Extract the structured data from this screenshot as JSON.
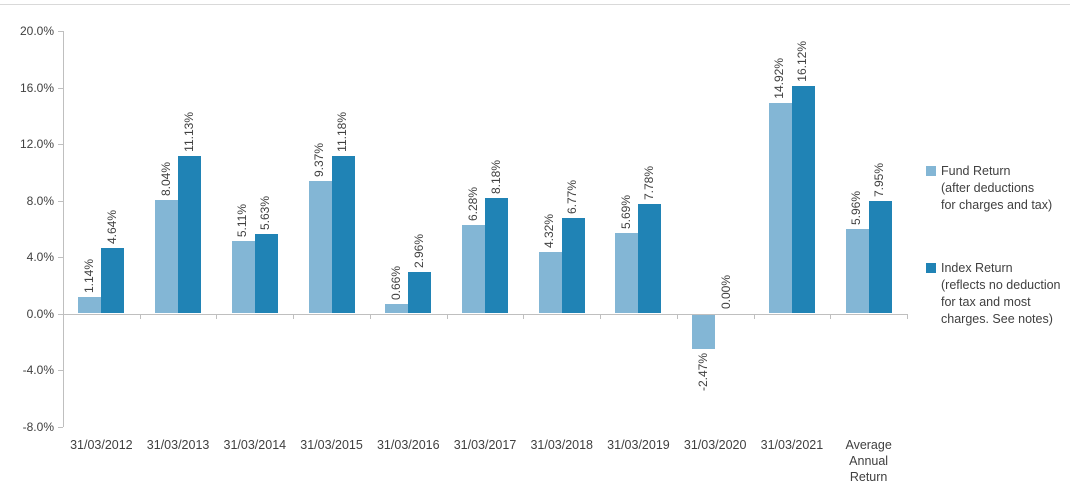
{
  "chart_data": {
    "type": "bar",
    "categories": [
      "31/03/2012",
      "31/03/2013",
      "31/03/2014",
      "31/03/2015",
      "31/03/2016",
      "31/03/2017",
      "31/03/2018",
      "31/03/2019",
      "31/03/2020",
      "31/03/2021",
      "Average\nAnnual\nReturn"
    ],
    "series": [
      {
        "name": "Fund Return",
        "color": "#83B6D5",
        "values": [
          1.14,
          8.04,
          5.11,
          9.37,
          0.66,
          6.28,
          4.32,
          5.69,
          -2.47,
          14.92,
          5.96
        ],
        "labels": [
          "1.14%",
          "8.04%",
          "5.11%",
          "9.37%",
          "0.66%",
          "6.28%",
          "4.32%",
          "5.69%",
          "-2.47%",
          "14.92%",
          "5.96%"
        ]
      },
      {
        "name": "Index Return",
        "color": "#2083B5",
        "values": [
          4.64,
          11.13,
          5.63,
          11.18,
          2.96,
          8.18,
          6.77,
          7.78,
          0.0,
          16.12,
          7.95
        ],
        "labels": [
          "4.64%",
          "11.13%",
          "5.63%",
          "11.18%",
          "2.96%",
          "8.18%",
          "6.77%",
          "7.78%",
          "0.00%",
          "16.12%",
          "7.95%"
        ]
      }
    ],
    "y_axis": {
      "min": -8.0,
      "max": 20.0,
      "step": 4.0,
      "tick_labels": [
        "20.0%",
        "16.0%",
        "12.0%",
        "8.0%",
        "4.0%",
        "0.0%",
        "-4.0%",
        "-8.0%"
      ]
    },
    "grid": false,
    "legend_position": "right",
    "data_labels_rotated": true
  },
  "legend": {
    "items": [
      {
        "label": "Fund Return\n(after deductions\nfor charges and tax)",
        "color": "#83B6D5"
      },
      {
        "label": "Index Return\n(reflects no deduction\nfor tax and most\ncharges. See notes)",
        "color": "#2083B5"
      }
    ]
  },
  "colors": {
    "fund_bar": "#83B6D5",
    "index_bar": "#2083B5",
    "axis": "#bfbfbf",
    "text": "#404040",
    "top_border": "#d9d9d9"
  }
}
